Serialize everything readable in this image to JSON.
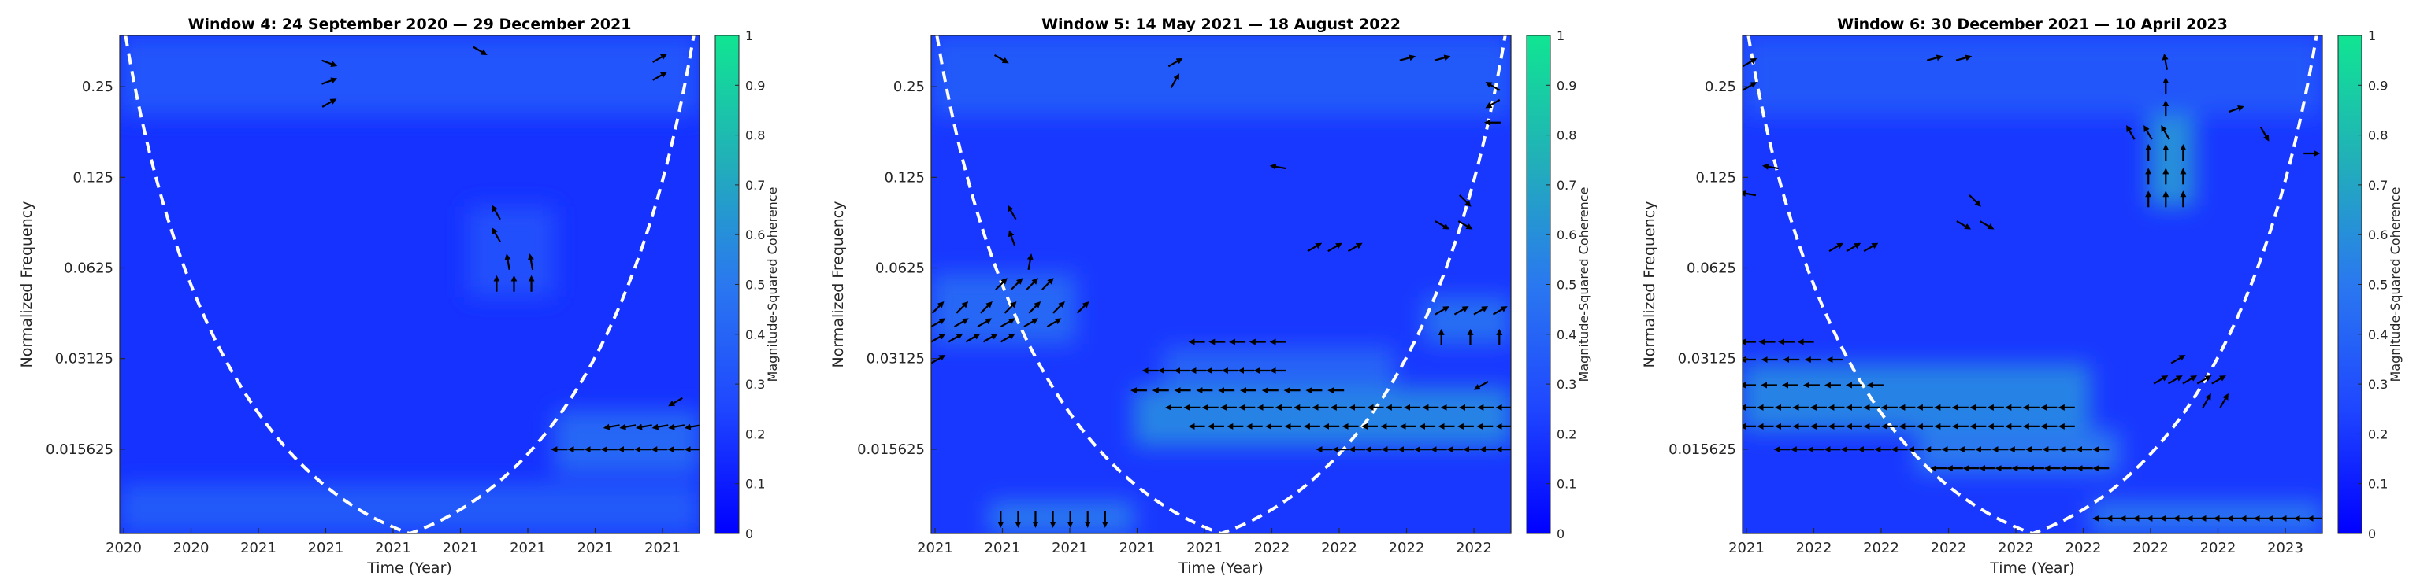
{
  "figure": {
    "colorbar_label": "Magnitude-Squared Coherence",
    "colorbar_ticks": [
      "0",
      "0.1",
      "0.2",
      "0.3",
      "0.4",
      "0.5",
      "0.6",
      "0.7",
      "0.8",
      "0.9",
      "1"
    ],
    "colormap": [
      "#0000ff",
      "#1f46ff",
      "#2a78f0",
      "#21b0b8",
      "#10e592"
    ]
  },
  "chart_data": [
    {
      "type": "heatmap",
      "title": "Window 4: 24 September 2020 — 29 December 2021",
      "xlabel": "Time (Year)",
      "ylabel": "Normalized Frequency",
      "x_tick_labels": [
        "2020",
        "2020",
        "2021",
        "2021",
        "2021",
        "2021",
        "2021",
        "2021",
        "2021"
      ],
      "y_ticks": [
        {
          "value": 0.25,
          "label": "0.25"
        },
        {
          "value": 0.125,
          "label": "0.125"
        },
        {
          "value": 0.0625,
          "label": "0.0625"
        },
        {
          "value": 0.03125,
          "label": "0.03125"
        },
        {
          "value": 0.015625,
          "label": "0.015625"
        }
      ],
      "y_scale": "log2",
      "ylim": [
        0.0082,
        0.37
      ],
      "xlim": [
        0,
        1
      ],
      "zlim": [
        0,
        1
      ],
      "background_level": 0.18,
      "cone_of_influence": {
        "style": "dashed",
        "color": "#ffffff",
        "apex": [
          0.5,
          0.0082
        ],
        "left_top": 0.01,
        "right_top": 0.99
      },
      "regions": [
        {
          "x": [
            0.0,
            1.0
          ],
          "y": [
            0.0082,
            0.012
          ],
          "level": 0.35
        },
        {
          "x": [
            0.75,
            1.0
          ],
          "y": [
            0.013,
            0.021
          ],
          "level": 0.42
        },
        {
          "x": [
            0.6,
            0.75
          ],
          "y": [
            0.05,
            0.1
          ],
          "level": 0.3
        },
        {
          "x": [
            0.0,
            1.0
          ],
          "y": [
            0.2,
            0.37
          ],
          "level": 0.32
        }
      ],
      "arrow_groups": [
        {
          "x": [
            0.76,
            0.99
          ],
          "y": 0.0156,
          "count": 9,
          "angle": 180
        },
        {
          "x": [
            0.85,
            0.99
          ],
          "y": 0.0186,
          "count": 6,
          "angle": 190
        },
        {
          "x": [
            0.96,
            0.96
          ],
          "y": 0.0225,
          "count": 1,
          "angle": 210
        },
        {
          "x": [
            0.65,
            0.71
          ],
          "y": 0.055,
          "count": 3,
          "angle": 90
        },
        {
          "x": [
            0.67,
            0.71
          ],
          "y": 0.065,
          "count": 2,
          "angle": 100
        },
        {
          "x": [
            0.65,
            0.65
          ],
          "y": 0.08,
          "count": 1,
          "angle": 120
        },
        {
          "x": [
            0.65,
            0.65
          ],
          "y": 0.095,
          "count": 1,
          "angle": 120
        },
        {
          "x": [
            0.36,
            0.36
          ],
          "y": 0.22,
          "count": 1,
          "angle": 30
        },
        {
          "x": [
            0.36,
            0.36
          ],
          "y": 0.26,
          "count": 1,
          "angle": 20
        },
        {
          "x": [
            0.36,
            0.36
          ],
          "y": 0.3,
          "count": 1,
          "angle": 340
        },
        {
          "x": [
            0.62,
            0.62
          ],
          "y": 0.33,
          "count": 1,
          "angle": 330
        },
        {
          "x": [
            0.93,
            0.93
          ],
          "y": 0.27,
          "count": 1,
          "angle": 30
        },
        {
          "x": [
            0.93,
            0.93
          ],
          "y": 0.31,
          "count": 1,
          "angle": 30
        }
      ]
    },
    {
      "type": "heatmap",
      "title": "Window 5: 14 May 2021 — 18 August 2022",
      "xlabel": "Time (Year)",
      "ylabel": "Normalized Frequency",
      "x_tick_labels": [
        "2021",
        "2021",
        "2021",
        "2021",
        "2021",
        "2022",
        "2022",
        "2022",
        "2022"
      ],
      "y_ticks": [
        {
          "value": 0.25,
          "label": "0.25"
        },
        {
          "value": 0.125,
          "label": "0.125"
        },
        {
          "value": 0.0625,
          "label": "0.0625"
        },
        {
          "value": 0.03125,
          "label": "0.03125"
        },
        {
          "value": 0.015625,
          "label": "0.015625"
        }
      ],
      "y_scale": "log2",
      "ylim": [
        0.0082,
        0.37
      ],
      "xlim": [
        0,
        1
      ],
      "zlim": [
        0,
        1
      ],
      "background_level": 0.2,
      "cone_of_influence": {
        "style": "dashed",
        "color": "#ffffff",
        "apex": [
          0.5,
          0.0082
        ],
        "left_top": 0.01,
        "right_top": 0.99
      },
      "regions": [
        {
          "x": [
            0.35,
            1.0
          ],
          "y": [
            0.016,
            0.025
          ],
          "level": 0.55
        },
        {
          "x": [
            0.4,
            0.8
          ],
          "y": [
            0.025,
            0.034
          ],
          "level": 0.4
        },
        {
          "x": [
            0.0,
            0.25
          ],
          "y": [
            0.035,
            0.06
          ],
          "level": 0.42
        },
        {
          "x": [
            0.1,
            0.35
          ],
          "y": [
            0.0082,
            0.0105
          ],
          "level": 0.5
        },
        {
          "x": [
            0.85,
            1.0
          ],
          "y": [
            0.035,
            0.05
          ],
          "level": 0.45
        },
        {
          "x": [
            0.0,
            1.0
          ],
          "y": [
            0.2,
            0.37
          ],
          "level": 0.35
        }
      ],
      "arrow_groups": [
        {
          "x": [
            0.12,
            0.3
          ],
          "y": 0.0092,
          "count": 7,
          "angle": 270
        },
        {
          "x": [
            0.68,
            0.99
          ],
          "y": 0.0156,
          "count": 12,
          "angle": 180
        },
        {
          "x": [
            0.46,
            0.99
          ],
          "y": 0.0186,
          "count": 17,
          "angle": 180
        },
        {
          "x": [
            0.42,
            0.99
          ],
          "y": 0.0215,
          "count": 19,
          "angle": 180
        },
        {
          "x": [
            0.36,
            0.7
          ],
          "y": 0.0245,
          "count": 10,
          "angle": 180
        },
        {
          "x": [
            0.38,
            0.6
          ],
          "y": 0.0285,
          "count": 9,
          "angle": 180
        },
        {
          "x": [
            0.46,
            0.6
          ],
          "y": 0.0355,
          "count": 5,
          "angle": 180
        },
        {
          "x": [
            0.95,
            0.95
          ],
          "y": 0.0255,
          "count": 1,
          "angle": 210
        },
        {
          "x": [
            0.0,
            0.0
          ],
          "y": 0.031,
          "count": 1,
          "angle": 30
        },
        {
          "x": [
            0.0,
            0.12
          ],
          "y": 0.0365,
          "count": 5,
          "angle": 30
        },
        {
          "x": [
            0.0,
            0.2
          ],
          "y": 0.041,
          "count": 6,
          "angle": 30
        },
        {
          "x": [
            0.0,
            0.25
          ],
          "y": 0.046,
          "count": 7,
          "angle": 45
        },
        {
          "x": [
            0.12,
            0.2
          ],
          "y": 0.055,
          "count": 4,
          "angle": 45
        },
        {
          "x": [
            0.17,
            0.17
          ],
          "y": 0.065,
          "count": 1,
          "angle": 80
        },
        {
          "x": [
            0.14,
            0.14
          ],
          "y": 0.078,
          "count": 1,
          "angle": 110
        },
        {
          "x": [
            0.14,
            0.14
          ],
          "y": 0.095,
          "count": 1,
          "angle": 120
        },
        {
          "x": [
            0.88,
            0.98
          ],
          "y": 0.0365,
          "count": 3,
          "angle": 90
        },
        {
          "x": [
            0.88,
            0.98
          ],
          "y": 0.045,
          "count": 4,
          "angle": 30
        },
        {
          "x": [
            0.66,
            0.73
          ],
          "y": 0.073,
          "count": 3,
          "angle": 30
        },
        {
          "x": [
            0.88,
            0.92
          ],
          "y": 0.087,
          "count": 2,
          "angle": 330
        },
        {
          "x": [
            0.92,
            0.92
          ],
          "y": 0.105,
          "count": 1,
          "angle": 315
        },
        {
          "x": [
            0.6,
            0.6
          ],
          "y": 0.135,
          "count": 1,
          "angle": 170
        },
        {
          "x": [
            0.97,
            0.97
          ],
          "y": 0.19,
          "count": 1,
          "angle": 180
        },
        {
          "x": [
            0.97,
            0.97
          ],
          "y": 0.22,
          "count": 1,
          "angle": 210
        },
        {
          "x": [
            0.97,
            0.97
          ],
          "y": 0.25,
          "count": 1,
          "angle": 150
        },
        {
          "x": [
            0.42,
            0.42
          ],
          "y": 0.26,
          "count": 1,
          "angle": 60
        },
        {
          "x": [
            0.42,
            0.42
          ],
          "y": 0.3,
          "count": 1,
          "angle": 30
        },
        {
          "x": [
            0.12,
            0.12
          ],
          "y": 0.31,
          "count": 1,
          "angle": 330
        },
        {
          "x": [
            0.82,
            0.88
          ],
          "y": 0.31,
          "count": 2,
          "angle": 15
        }
      ]
    },
    {
      "type": "heatmap",
      "title": "Window 6: 30 December 2021 — 10 April 2023",
      "xlabel": "Time (Year)",
      "ylabel": "Normalized Frequency",
      "x_tick_labels": [
        "2021",
        "2022",
        "2022",
        "2022",
        "2022",
        "2022",
        "2022",
        "2022",
        "2023"
      ],
      "y_ticks": [
        {
          "value": 0.25,
          "label": "0.25"
        },
        {
          "value": 0.125,
          "label": "0.125"
        },
        {
          "value": 0.0625,
          "label": "0.0625"
        },
        {
          "value": 0.03125,
          "label": "0.03125"
        },
        {
          "value": 0.015625,
          "label": "0.015625"
        }
      ],
      "y_scale": "log2",
      "ylim": [
        0.0082,
        0.37
      ],
      "xlim": [
        0,
        1
      ],
      "zlim": [
        0,
        1
      ],
      "background_level": 0.2,
      "cone_of_influence": {
        "style": "dashed",
        "color": "#ffffff",
        "apex": [
          0.5,
          0.0082
        ],
        "left_top": 0.01,
        "right_top": 0.99
      },
      "regions": [
        {
          "x": [
            0.0,
            0.6
          ],
          "y": [
            0.018,
            0.03
          ],
          "level": 0.55
        },
        {
          "x": [
            0.3,
            0.65
          ],
          "y": [
            0.013,
            0.018
          ],
          "level": 0.5
        },
        {
          "x": [
            0.6,
            1.0
          ],
          "y": [
            0.0082,
            0.0105
          ],
          "level": 0.48
        },
        {
          "x": [
            0.7,
            0.78
          ],
          "y": [
            0.1,
            0.37
          ],
          "level": 0.6
        },
        {
          "x": [
            0.0,
            1.0
          ],
          "y": [
            0.2,
            0.37
          ],
          "level": 0.33
        }
      ],
      "arrow_groups": [
        {
          "x": [
            0.62,
            0.99
          ],
          "y": 0.0092,
          "count": 17,
          "angle": 180
        },
        {
          "x": [
            0.34,
            0.62
          ],
          "y": 0.0135,
          "count": 11,
          "angle": 180
        },
        {
          "x": [
            0.07,
            0.62
          ],
          "y": 0.0156,
          "count": 20,
          "angle": 180
        },
        {
          "x": [
            0.0,
            0.55
          ],
          "y": 0.0186,
          "count": 19,
          "angle": 180
        },
        {
          "x": [
            0.0,
            0.55
          ],
          "y": 0.0215,
          "count": 19,
          "angle": 180
        },
        {
          "x": [
            0.0,
            0.22
          ],
          "y": 0.0255,
          "count": 7,
          "angle": 180
        },
        {
          "x": [
            0.0,
            0.15
          ],
          "y": 0.031,
          "count": 5,
          "angle": 180
        },
        {
          "x": [
            0.0,
            0.1
          ],
          "y": 0.0355,
          "count": 4,
          "angle": 180
        },
        {
          "x": [
            0.8,
            0.83
          ],
          "y": 0.0225,
          "count": 2,
          "angle": 60
        },
        {
          "x": [
            0.72,
            0.82
          ],
          "y": 0.0265,
          "count": 5,
          "angle": 30
        },
        {
          "x": [
            0.75,
            0.75
          ],
          "y": 0.031,
          "count": 1,
          "angle": 30
        },
        {
          "x": [
            0.16,
            0.22
          ],
          "y": 0.073,
          "count": 3,
          "angle": 30
        },
        {
          "x": [
            0.38,
            0.42
          ],
          "y": 0.087,
          "count": 2,
          "angle": 330
        },
        {
          "x": [
            0.4,
            0.4
          ],
          "y": 0.105,
          "count": 1,
          "angle": 315
        },
        {
          "x": [
            0.05,
            0.05
          ],
          "y": 0.135,
          "count": 1,
          "angle": 170
        },
        {
          "x": [
            0.0,
            0.0
          ],
          "y": 0.11,
          "count": 1,
          "angle": 170
        },
        {
          "x": [
            0.7,
            0.76
          ],
          "y": 0.105,
          "count": 3,
          "angle": 90
        },
        {
          "x": [
            0.7,
            0.76
          ],
          "y": 0.125,
          "count": 3,
          "angle": 90
        },
        {
          "x": [
            0.7,
            0.76
          ],
          "y": 0.15,
          "count": 3,
          "angle": 90
        },
        {
          "x": [
            0.67,
            0.73
          ],
          "y": 0.175,
          "count": 3,
          "angle": 120
        },
        {
          "x": [
            0.73,
            0.73
          ],
          "y": 0.21,
          "count": 1,
          "angle": 90
        },
        {
          "x": [
            0.73,
            0.73
          ],
          "y": 0.25,
          "count": 1,
          "angle": 90
        },
        {
          "x": [
            0.73,
            0.73
          ],
          "y": 0.3,
          "count": 1,
          "angle": 100
        },
        {
          "x": [
            0.85,
            0.85
          ],
          "y": 0.21,
          "count": 1,
          "angle": 20
        },
        {
          "x": [
            0.9,
            0.9
          ],
          "y": 0.175,
          "count": 1,
          "angle": 300
        },
        {
          "x": [
            0.98,
            0.98
          ],
          "y": 0.15,
          "count": 1,
          "angle": 0
        },
        {
          "x": [
            0.0,
            0.0
          ],
          "y": 0.25,
          "count": 1,
          "angle": 30
        },
        {
          "x": [
            0.0,
            0.0
          ],
          "y": 0.3,
          "count": 1,
          "angle": 30
        },
        {
          "x": [
            0.33,
            0.38
          ],
          "y": 0.31,
          "count": 2,
          "angle": 15
        }
      ]
    }
  ]
}
